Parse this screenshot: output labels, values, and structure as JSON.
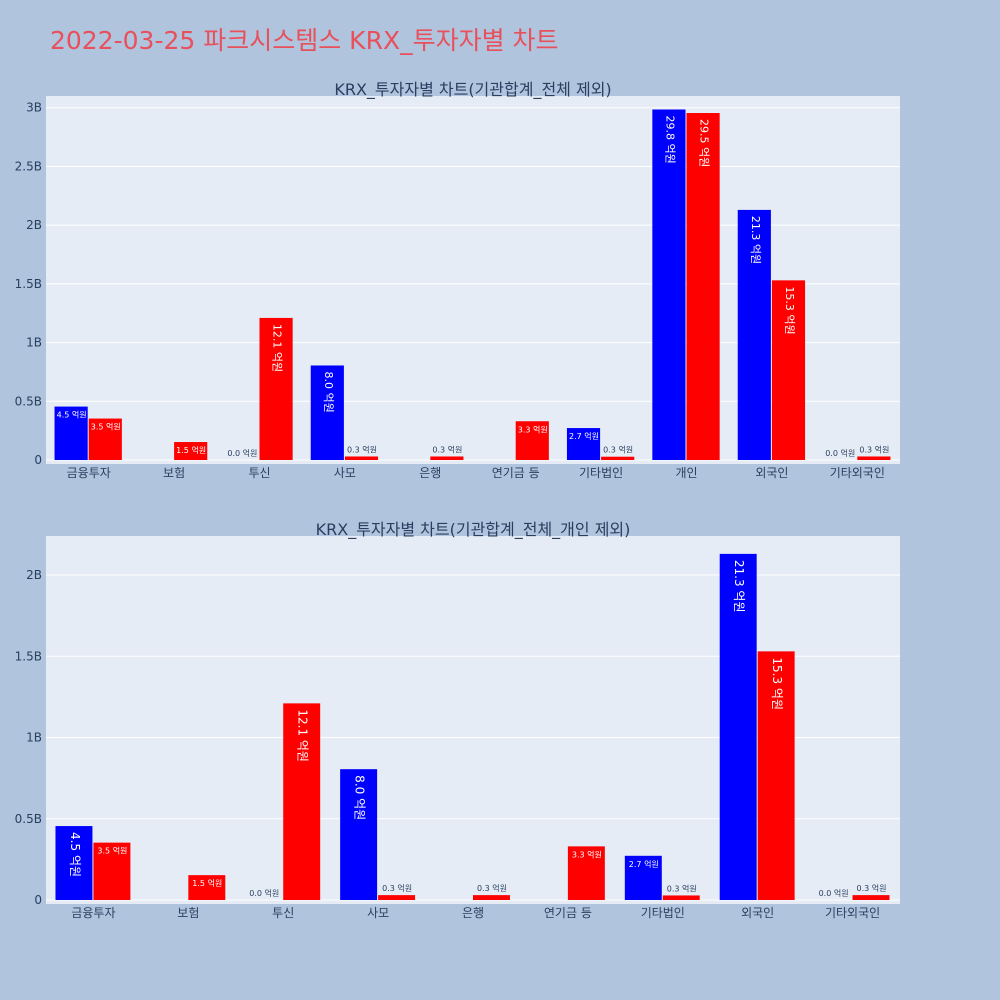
{
  "page": {
    "title": "2022-03-25 파크시스템스 KRX_투자자별 차트",
    "background": "#b0c4de",
    "title_color": "#e8505b"
  },
  "chart_data": [
    {
      "type": "bar",
      "title": "KRX_투자자별 차트(기관합계_전체 제외)",
      "categories": [
        "금융투자",
        "보험",
        "투신",
        "사모",
        "은행",
        "연기금 등",
        "기타법인",
        "개인",
        "외국인",
        "기타외국인"
      ],
      "series": [
        {
          "color": "#0000ff",
          "values": [
            455000000,
            0,
            0,
            805000000,
            0,
            0,
            272000000,
            2985000000,
            2130000000,
            0
          ],
          "labels": [
            "4.5 억원",
            "",
            "0.0 억원",
            "8.0 억원",
            "",
            "",
            "2.7 억원",
            "29.8 억원",
            "21.3 억원",
            "0.0 억원"
          ]
        },
        {
          "color": "#ff0000",
          "values": [
            353000000,
            153000000,
            1210000000,
            30000000,
            30000000,
            330000000,
            28000000,
            2955000000,
            1530000000,
            30000000
          ],
          "labels": [
            "3.5 억원",
            "1.5 억원",
            "12.1 억원",
            "0.3 억원",
            "0.3 억원",
            "3.3 억원",
            "0.3 억원",
            "29.5 억원",
            "15.3 억원",
            "0.3 억원"
          ]
        }
      ],
      "ylim": [
        0,
        3100000000
      ],
      "yticks": [
        0,
        500000000,
        1000000000,
        1500000000,
        2000000000,
        2500000000,
        3000000000
      ],
      "ytick_labels": [
        "0",
        "0.5B",
        "1B",
        "1.5B",
        "2B",
        "2.5B",
        "3B"
      ],
      "grid": true
    },
    {
      "type": "bar",
      "title": "KRX_투자자별 차트(기관합계_전체_개인 제외)",
      "categories": [
        "금융투자",
        "보험",
        "투신",
        "사모",
        "은행",
        "연기금 등",
        "기타법인",
        "외국인",
        "기타외국인"
      ],
      "series": [
        {
          "color": "#0000ff",
          "values": [
            455000000,
            0,
            0,
            805000000,
            0,
            0,
            272000000,
            2130000000,
            0
          ],
          "labels": [
            "4.5 억원",
            "",
            "0.0 억원",
            "8.0 억원",
            "",
            "",
            "2.7 억원",
            "21.3 억원",
            "0.0 억원"
          ]
        },
        {
          "color": "#ff0000",
          "values": [
            353000000,
            153000000,
            1210000000,
            30000000,
            30000000,
            330000000,
            28000000,
            1530000000,
            30000000
          ],
          "labels": [
            "3.5 억원",
            "1.5 억원",
            "12.1 억원",
            "0.3 억원",
            "0.3 억원",
            "3.3 억원",
            "0.3 억원",
            "15.3 억원",
            "0.3 억원"
          ]
        }
      ],
      "ylim": [
        0,
        2240000000
      ],
      "yticks": [
        0,
        500000000,
        1000000000,
        1500000000,
        2000000000
      ],
      "ytick_labels": [
        "0",
        "0.5B",
        "1B",
        "1.5B",
        "2B"
      ],
      "grid": true
    }
  ]
}
